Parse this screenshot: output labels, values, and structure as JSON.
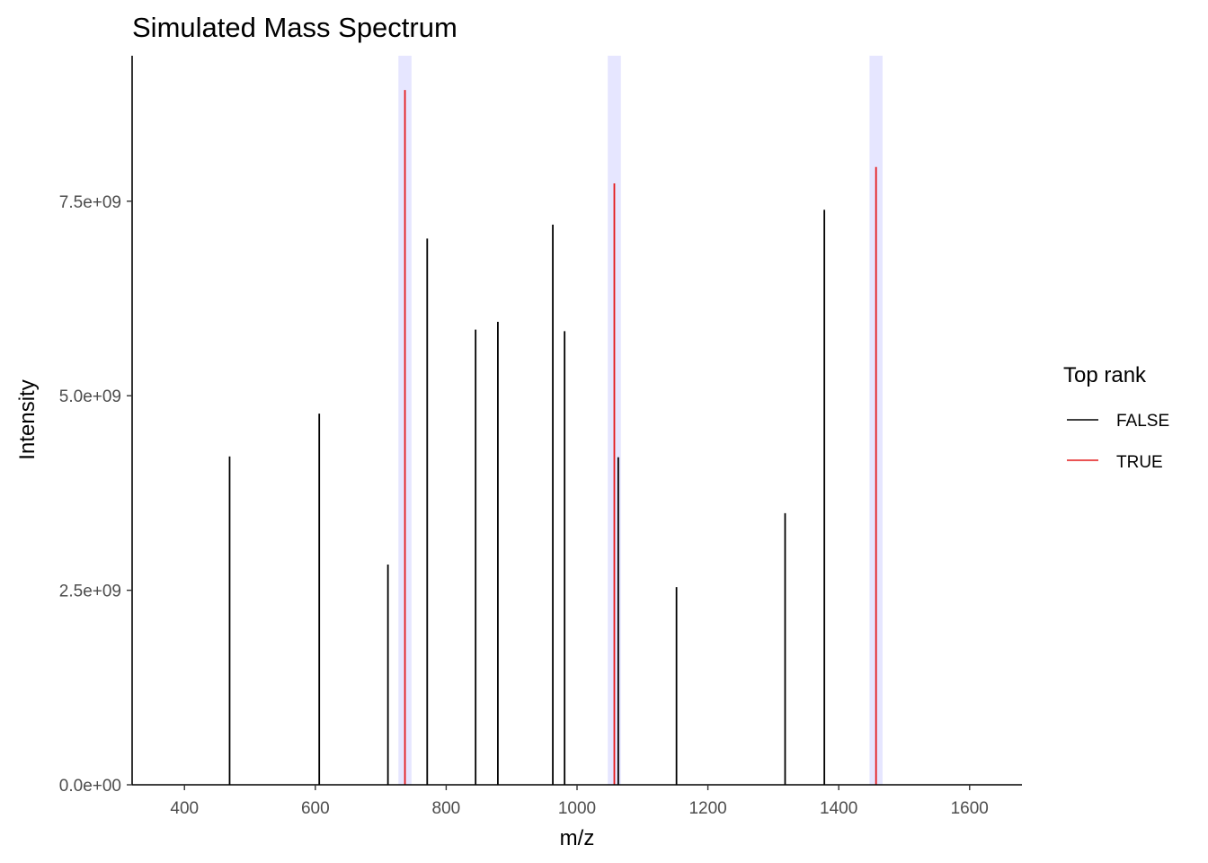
{
  "chart_data": {
    "type": "bar",
    "title": "Simulated Mass Spectrum",
    "xlabel": "m/z",
    "ylabel": "Intensity",
    "xlim": [
      320,
      1680
    ],
    "ylim": [
      0,
      9370000000.0
    ],
    "x_ticks": [
      400,
      600,
      800,
      1000,
      1200,
      1400,
      1600
    ],
    "x_tick_labels": [
      "400",
      "600",
      "800",
      "1000",
      "1200",
      "1400",
      "1600"
    ],
    "y_ticks": [
      0,
      2500000000.0,
      5000000000.0,
      7500000000.0
    ],
    "y_tick_labels": [
      "0.0e+00",
      "2.5e+09",
      "5.0e+09",
      "7.5e+09"
    ],
    "grid": false,
    "legend": {
      "title": "Top rank",
      "position": "right",
      "entries": [
        {
          "label": "FALSE",
          "color": "#000000"
        },
        {
          "label": "TRUE",
          "color": "#e41a1c"
        }
      ]
    },
    "highlight_bands": [
      {
        "xmin": 727,
        "xmax": 747
      },
      {
        "xmin": 1047,
        "xmax": 1067
      },
      {
        "xmin": 1447,
        "xmax": 1467
      }
    ],
    "highlight_color": "#e6e6ff",
    "series": [
      {
        "name": "FALSE",
        "color": "#000000",
        "x": [
          469,
          606,
          711,
          771,
          845,
          879,
          963,
          981,
          1063,
          1152,
          1318,
          1378
        ],
        "y": [
          4220000000.0,
          4770000000.0,
          2830000000.0,
          7020000000.0,
          5850000000.0,
          5950000000.0,
          7200000000.0,
          5830000000.0,
          4210000000.0,
          2540000000.0,
          3490000000.0,
          7390000000.0
        ]
      },
      {
        "name": "TRUE",
        "color": "#e41a1c",
        "x": [
          737,
          1057,
          1457
        ],
        "y": [
          8930000000.0,
          7730000000.0,
          7940000000.0
        ]
      }
    ]
  }
}
